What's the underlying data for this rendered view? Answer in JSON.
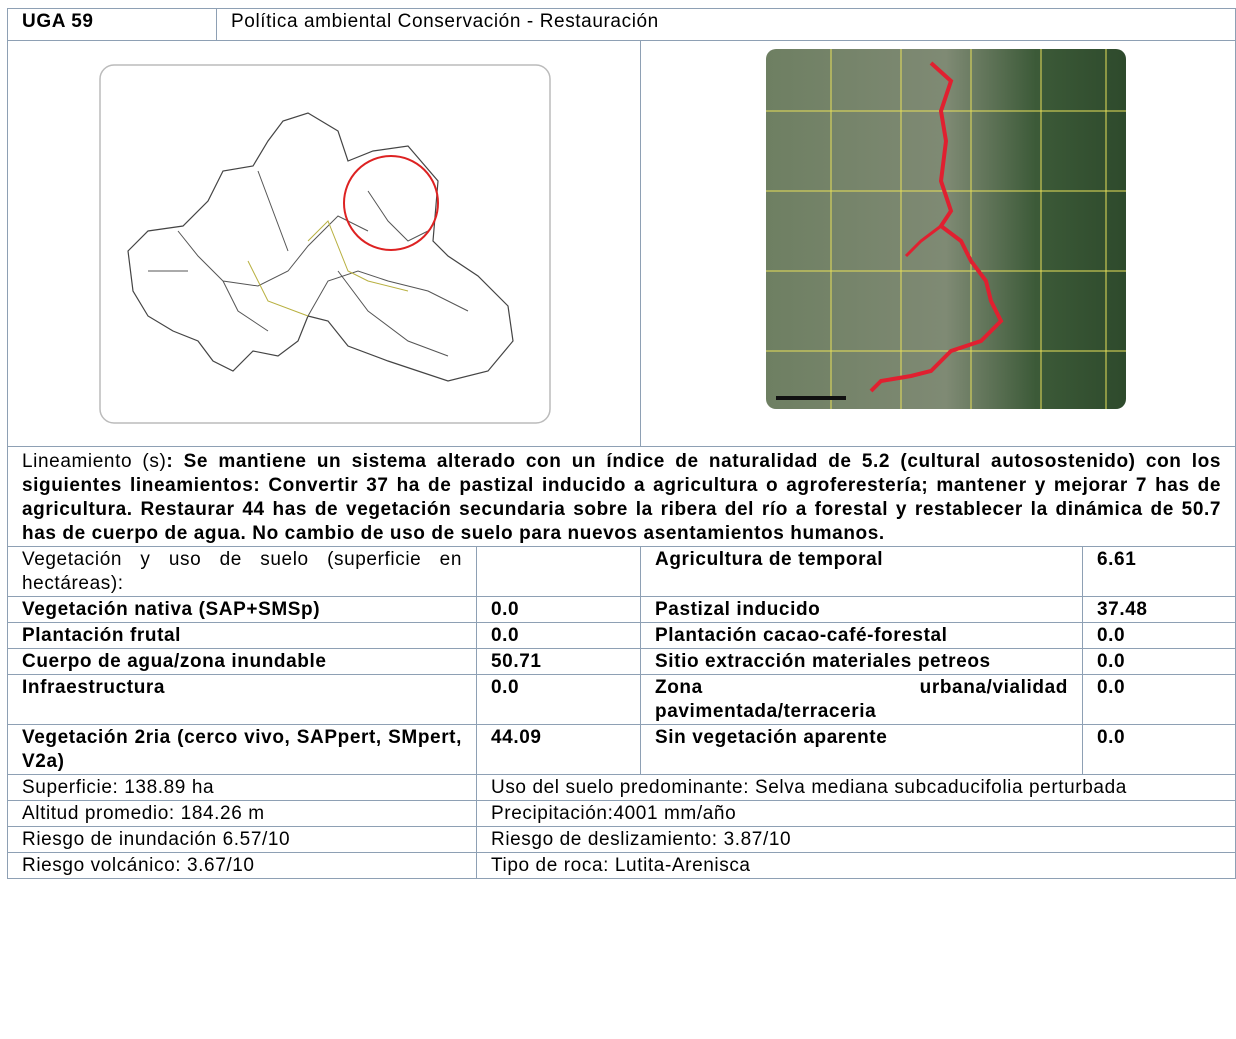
{
  "header": {
    "code": "UGA 59",
    "policy": "Política ambiental Conservación - Restauración"
  },
  "guideline": {
    "label": "Lineamiento (s)",
    "text": ": Se mantiene un sistema alterado con un índice de naturalidad de 5.2 (cultural autosostenido) con los siguientes lineamientos: Convertir 37 ha de pastizal inducido a agricultura o agroferestería; mantener y mejorar 7 has de agricultura. Restaurar 44 has de vegetación secundaria sobre la ribera del río a forestal y restablecer la dinámica de 50.7 has de cuerpo de agua. No cambio de uso de suelo para nuevos asentamientos humanos."
  },
  "land_use": {
    "heading": "Vegetación y uso de suelo (superficie en hectáreas):",
    "first_value": "",
    "first_label": "Agricultura de temporal",
    "first_value2": "6.61",
    "rows": [
      [
        "Vegetación nativa (SAP+SMSp)",
        "0.0",
        "Pastizal inducido",
        "37.48"
      ],
      [
        "Plantación frutal",
        "0.0",
        "Plantación cacao-café-forestal",
        "0.0"
      ],
      [
        "Cuerpo de agua/zona inundable",
        "50.71",
        "Sitio extracción materiales petreos",
        "0.0"
      ],
      [
        "Infraestructura",
        "0.0",
        "Zona urbana/vialidad pavimentada/terraceria",
        "0.0"
      ],
      [
        "Vegetación 2ria (cerco vivo, SAPpert, SMpert, V2a)",
        "44.09",
        "Sin vegetación aparente",
        "0.0"
      ]
    ]
  },
  "site_info": [
    [
      "Superficie: 138.89 ha",
      "Uso del suelo predominante: Selva mediana subcaducifolia perturbada"
    ],
    [
      "Altitud promedio: 184.26 m",
      "Precipitación:4001 mm/año"
    ],
    [
      "Riesgo de inundación 6.57/10",
      "Riesgo de deslizamiento: 3.87/10"
    ],
    [
      "Riesgo volcánico: 3.67/10",
      "Tipo de roca: Lutita-Arenisca"
    ]
  ]
}
